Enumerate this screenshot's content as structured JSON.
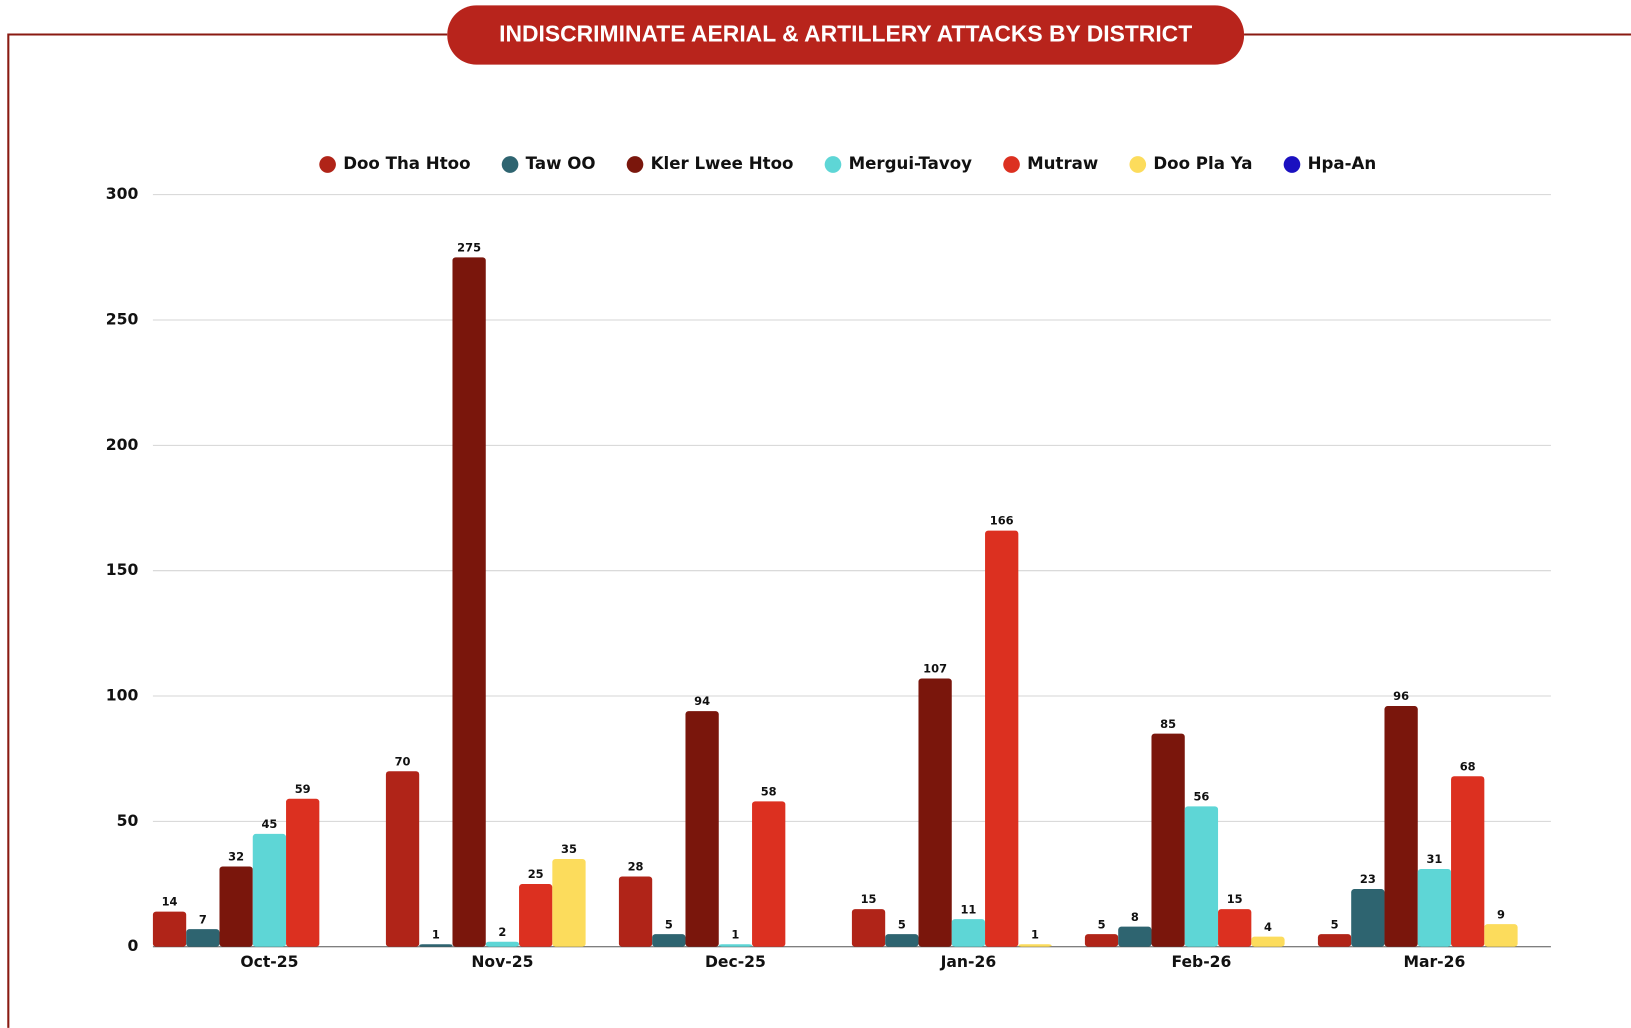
{
  "chart_data": {
    "type": "bar",
    "title": "INDISCRIMINATE AERIAL & ARTILLERY ATTACKS BY DISTRICT",
    "categories": [
      "Oct-25",
      "Nov-25",
      "Dec-25",
      "Jan-26",
      "Feb-26",
      "Mar-26"
    ],
    "series": [
      {
        "name": "Doo Tha Htoo",
        "color": "#b02418",
        "values": [
          14,
          70,
          28,
          15,
          5,
          5
        ]
      },
      {
        "name": "Taw OO",
        "color": "#2e6470",
        "values": [
          7,
          1,
          5,
          5,
          8,
          23
        ]
      },
      {
        "name": "Kler Lwee Htoo",
        "color": "#7a160c",
        "values": [
          32,
          275,
          94,
          107,
          85,
          96
        ]
      },
      {
        "name": "Mergui-Tavoy",
        "color": "#5ed6d6",
        "values": [
          45,
          2,
          1,
          11,
          56,
          31
        ]
      },
      {
        "name": "Mutraw",
        "color": "#dc3020",
        "values": [
          59,
          25,
          58,
          166,
          15,
          68
        ]
      },
      {
        "name": "Doo Pla Ya",
        "color": "#fcdc5c",
        "values": [
          null,
          35,
          null,
          1,
          4,
          9
        ]
      },
      {
        "name": "Hpa-An",
        "color": "#1a10c0",
        "values": [
          null,
          null,
          null,
          null,
          null,
          null
        ]
      }
    ],
    "ylim": [
      0,
      300
    ],
    "yticks": [
      0,
      50,
      100,
      150,
      200,
      250,
      300
    ],
    "grid": true,
    "legend": "top"
  }
}
